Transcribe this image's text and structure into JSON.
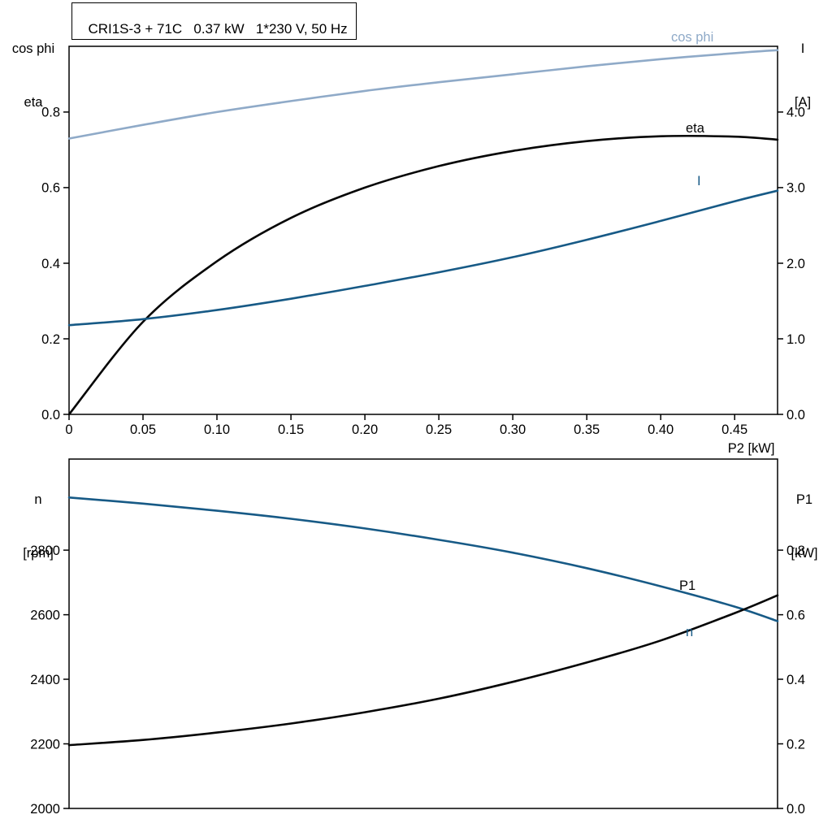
{
  "chart_data": [
    {
      "id": "motor-top",
      "type": "line",
      "title": "CRI1S-3 + 71C   0.37 kW   1*230 V, 50 Hz",
      "x_axis": {
        "label": "P2 [kW]",
        "min": 0,
        "max": 0.479,
        "ticks": [
          0,
          0.05,
          0.1,
          0.15,
          0.2,
          0.25,
          0.3,
          0.35,
          0.4,
          0.45
        ],
        "tick_labels": [
          "0",
          "0.05",
          "0.10",
          "0.15",
          "0.20",
          "0.25",
          "0.30",
          "0.35",
          "0.40",
          "0.45"
        ]
      },
      "y_left": {
        "label_lines": [
          "cos phi",
          "eta"
        ],
        "min": 0,
        "max": 0.974,
        "ticks": [
          0.0,
          0.2,
          0.4,
          0.6,
          0.8
        ],
        "tick_labels": [
          "0.0",
          "0.2",
          "0.4",
          "0.6",
          "0.8"
        ]
      },
      "y_right": {
        "label_lines": [
          "I",
          "[A]"
        ],
        "min": 0,
        "max": 4.87,
        "ticks": [
          0.0,
          1.0,
          2.0,
          3.0,
          4.0
        ],
        "tick_labels": [
          "0.0",
          "1.0",
          "2.0",
          "3.0",
          "4.0"
        ]
      },
      "series": [
        {
          "name": "cos phi",
          "axis": "left",
          "color": "#8faac8",
          "x": [
            0,
            0.05,
            0.1,
            0.15,
            0.2,
            0.25,
            0.3,
            0.35,
            0.4,
            0.45,
            0.479
          ],
          "y": [
            0.73,
            0.766,
            0.8,
            0.829,
            0.856,
            0.879,
            0.9,
            0.921,
            0.94,
            0.956,
            0.964
          ]
        },
        {
          "name": "eta",
          "axis": "left",
          "color": "#050505",
          "x": [
            0,
            0.05,
            0.1,
            0.15,
            0.2,
            0.25,
            0.3,
            0.35,
            0.4,
            0.45,
            0.479
          ],
          "y": [
            0.0,
            0.245,
            0.405,
            0.52,
            0.6,
            0.657,
            0.697,
            0.723,
            0.736,
            0.735,
            0.727
          ]
        },
        {
          "name": "I",
          "axis": "right",
          "color": "#175a86",
          "x": [
            0,
            0.05,
            0.1,
            0.15,
            0.2,
            0.25,
            0.3,
            0.35,
            0.4,
            0.45,
            0.479
          ],
          "y": [
            1.18,
            1.26,
            1.38,
            1.53,
            1.7,
            1.88,
            2.08,
            2.31,
            2.56,
            2.82,
            2.96
          ]
        }
      ]
    },
    {
      "id": "motor-bottom",
      "type": "line",
      "y_left": {
        "label_lines": [
          "n",
          "[rpm]"
        ],
        "min": 2000,
        "max": 3082,
        "ticks": [
          2000,
          2200,
          2400,
          2600,
          2800
        ],
        "tick_labels": [
          "2000",
          "2200",
          "2400",
          "2600",
          "2800"
        ]
      },
      "y_right": {
        "label_lines": [
          "P1",
          "[kW]"
        ],
        "min": 0,
        "max": 1.082,
        "ticks": [
          0.0,
          0.2,
          0.4,
          0.6,
          0.8
        ],
        "tick_labels": [
          "0.0",
          "0.2",
          "0.4",
          "0.6",
          "0.8"
        ]
      },
      "x_axis": {
        "min": 0,
        "max": 0.479,
        "ticks": [],
        "tick_labels": []
      },
      "series": [
        {
          "name": "n",
          "axis": "left",
          "color": "#175a86",
          "x": [
            0,
            0.05,
            0.1,
            0.15,
            0.2,
            0.25,
            0.3,
            0.35,
            0.4,
            0.45,
            0.479
          ],
          "y": [
            2963,
            2944,
            2922,
            2897,
            2867,
            2832,
            2792,
            2744,
            2688,
            2625,
            2580
          ]
        },
        {
          "name": "P1",
          "axis": "right",
          "color": "#050505",
          "x": [
            0,
            0.05,
            0.1,
            0.15,
            0.2,
            0.25,
            0.3,
            0.35,
            0.4,
            0.45,
            0.479
          ],
          "y": [
            0.196,
            0.212,
            0.235,
            0.263,
            0.298,
            0.34,
            0.392,
            0.452,
            0.52,
            0.605,
            0.66
          ]
        }
      ]
    }
  ]
}
